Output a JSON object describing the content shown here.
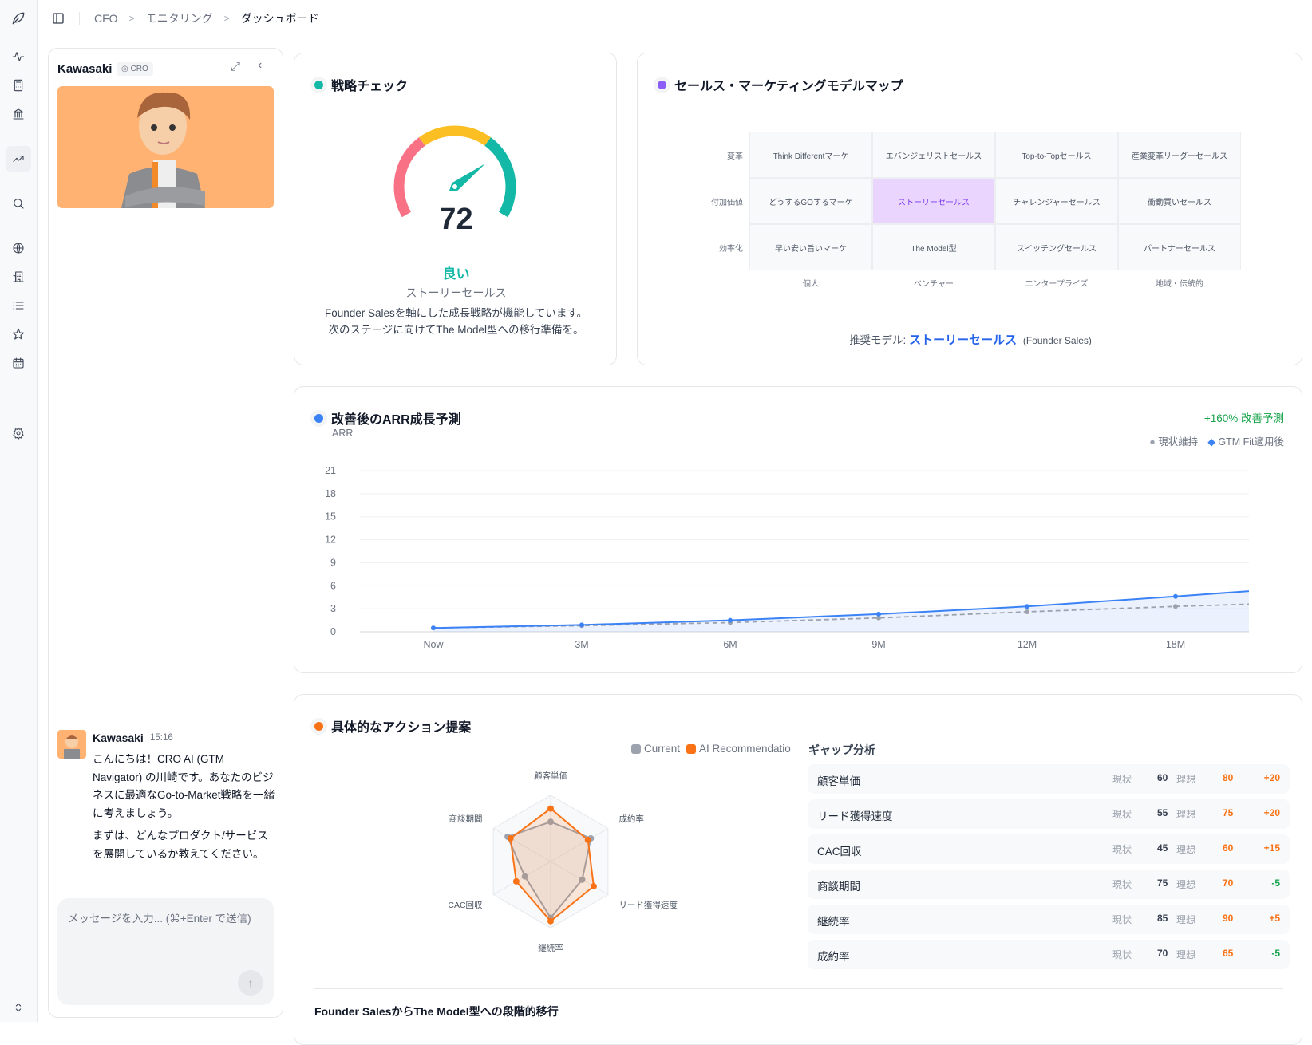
{
  "breadcrumb": [
    "CFO",
    "モニタリング",
    "ダッシュボード"
  ],
  "sidebar": {
    "icons": [
      "logo-icon",
      "activity-icon",
      "calculator-icon",
      "bank-icon",
      "trending-up-icon",
      "search-icon",
      "globe-icon",
      "building-icon",
      "list-icon",
      "star-icon",
      "calendar-icon",
      "settings-icon",
      "chevron-updown-icon"
    ],
    "active": "trending-up-icon"
  },
  "agent": {
    "name": "Kawasaki",
    "badge": "CRO"
  },
  "chat": {
    "sender": "Kawasaki",
    "time": "15:16",
    "paragraphs": [
      "こんにちは！CRO AI (GTM Navigator) の川崎です。あなたのビジネスに最適なGo-to-Market戦略を一緒に考えましょう。",
      "まずは、どんなプロダクト/サービスを展開しているか教えてください。"
    ],
    "input_placeholder": "メッセージを入力... (⌘+Enter で送信)"
  },
  "strategy": {
    "title": "戦略チェック",
    "score": "72",
    "score_value": 72,
    "rating": "良い",
    "model": "ストーリーセールス",
    "desc1": "Founder Salesを軸にした成長戦略が機能しています。",
    "desc2": "次のステージに向けてThe Model型への移行準備を。",
    "colors": {
      "low": "#f87184",
      "mid": "#fbbf24",
      "high": "#14b8a6"
    }
  },
  "model_map": {
    "title": "セールス・マーケティングモデルマップ",
    "rows": [
      "変革",
      "付加価値",
      "効率化"
    ],
    "cols": [
      "個人",
      "ベンチャー",
      "エンタープライズ",
      "地域・伝統的"
    ],
    "cells": [
      [
        "Think Differentマーケ",
        "エバンジェリストセールス",
        "Top-to-Topセールス",
        "産業変革リーダーセールス"
      ],
      [
        "どうするGOするマーケ",
        "ストーリーセールス",
        "チャレンジャーセールス",
        "衝動買いセールス"
      ],
      [
        "早い安い旨いマーケ",
        "The Model型",
        "スイッチングセールス",
        "パートナーセールス"
      ]
    ],
    "highlight": "ストーリーセールス",
    "recommend_label": "推奨モデル:",
    "recommend_value": "ストーリーセールス",
    "recommend_sub": "(Founder Sales)"
  },
  "arr": {
    "title": "改善後のARR成長予測",
    "badge": "+160% 改善予測",
    "chart_data": {
      "type": "line",
      "ylabel": "ARR",
      "ylim": [
        0,
        21
      ],
      "yticks": [
        0,
        3,
        6,
        9,
        12,
        15,
        18,
        21
      ],
      "categories": [
        "Now",
        "3M",
        "6M",
        "9M",
        "12M",
        "18M",
        ""
      ],
      "series": [
        {
          "name": "現状維持",
          "color": "#9ca3af",
          "dashed": true,
          "values": [
            0.5,
            0.8,
            1.2,
            1.8,
            2.6,
            3.3,
            3.9
          ]
        },
        {
          "name": "GTM Fit適用後",
          "color": "#3b82f6",
          "dashed": false,
          "values": [
            0.5,
            0.9,
            1.5,
            2.3,
            3.3,
            4.6,
            6.0
          ]
        }
      ],
      "grid": true,
      "legend": "top-right"
    }
  },
  "actions": {
    "title": "具体的なアクション提案",
    "radar": {
      "type": "radar",
      "axes": [
        "顧客単価",
        "成約率",
        "リード獲得速度",
        "継続率",
        "CAC回収",
        "商談期間"
      ],
      "max": 100,
      "series": [
        {
          "name": "Current",
          "color": "#9ca3af",
          "values": [
            60,
            70,
            55,
            85,
            45,
            75
          ]
        },
        {
          "name": "AI Recommendatio",
          "color": "#f97316",
          "values": [
            80,
            65,
            75,
            90,
            60,
            70
          ]
        }
      ]
    },
    "gap_title": "ギャップ分析",
    "cur_label": "現状",
    "ideal_label": "理想",
    "gaps": [
      {
        "name": "顧客単価",
        "cur": "60",
        "ideal": "80",
        "diff": "+20"
      },
      {
        "name": "リード獲得速度",
        "cur": "55",
        "ideal": "75",
        "diff": "+20"
      },
      {
        "name": "CAC回収",
        "cur": "45",
        "ideal": "60",
        "diff": "+15"
      },
      {
        "name": "商談期間",
        "cur": "75",
        "ideal": "70",
        "diff": "-5"
      },
      {
        "name": "継続率",
        "cur": "85",
        "ideal": "90",
        "diff": "+5"
      },
      {
        "name": "成約率",
        "cur": "70",
        "ideal": "65",
        "diff": "-5"
      }
    ],
    "migration_title": "Founder SalesからThe Model型への段階的移行"
  }
}
